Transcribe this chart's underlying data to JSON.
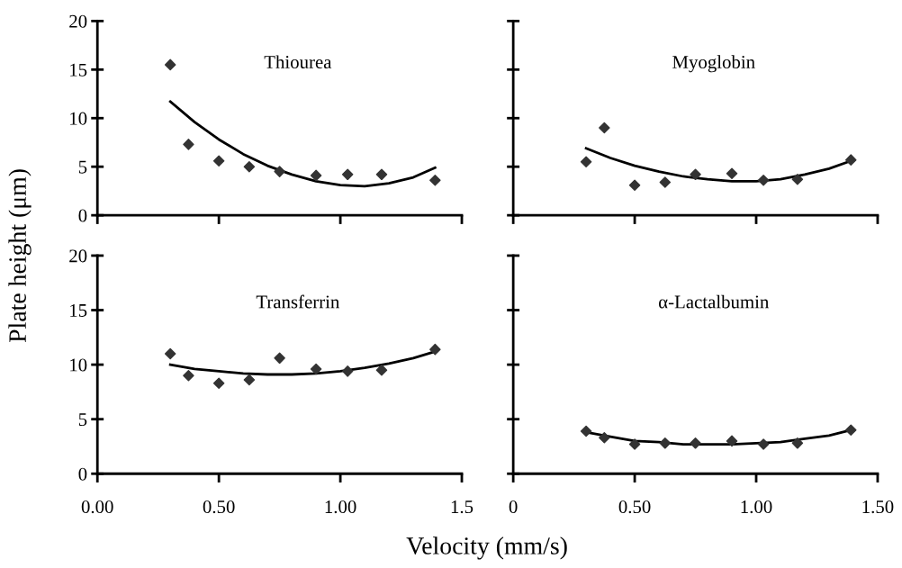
{
  "chart_data": [
    {
      "type": "scatter",
      "title": "Thiourea",
      "ylabel": "Plate height (μm)",
      "xlim": [
        0,
        1.5
      ],
      "xticks": [
        {
          "value": 0,
          "label": null
        },
        {
          "value": 0.5,
          "label": null
        },
        {
          "value": 1.0,
          "label": null
        },
        {
          "value": 1.5,
          "label": null
        }
      ],
      "ylim": [
        0,
        20
      ],
      "yticks": [
        0,
        5,
        10,
        15,
        20
      ],
      "tick_labels": "y",
      "series": [
        {
          "color": "#333333",
          "marker": "diamond",
          "x": [
            0.3,
            0.375,
            0.5,
            0.625,
            0.75,
            0.9,
            1.03,
            1.17,
            1.39
          ],
          "values": [
            15.5,
            7.3,
            5.6,
            5.0,
            4.5,
            4.1,
            4.2,
            4.2,
            3.6
          ]
        },
        {
          "type": "line",
          "color": "#000000",
          "x": [
            0.3,
            0.4,
            0.5,
            0.6,
            0.7,
            0.8,
            0.9,
            1.0,
            1.1,
            1.2,
            1.3,
            1.39
          ],
          "values": [
            11.7,
            9.6,
            7.8,
            6.3,
            5.1,
            4.2,
            3.5,
            3.1,
            3.0,
            3.3,
            3.9,
            4.9
          ]
        }
      ]
    },
    {
      "type": "scatter",
      "title": "Myoglobin",
      "xlim": [
        0,
        1.5
      ],
      "xticks": [
        {
          "value": 0,
          "label": null
        },
        {
          "value": 0.5,
          "label": null
        },
        {
          "value": 1.0,
          "label": null
        },
        {
          "value": 1.5,
          "label": null
        }
      ],
      "ylim": [
        0,
        20
      ],
      "yticks": [
        {
          "value": 0,
          "label": null
        },
        {
          "value": 5,
          "label": null
        },
        {
          "value": 10,
          "label": null
        },
        {
          "value": 15,
          "label": null
        },
        {
          "value": 20,
          "label": null
        }
      ],
      "tick_labels": false,
      "series": [
        {
          "color": "#333333",
          "marker": "diamond",
          "x": [
            0.3,
            0.375,
            0.5,
            0.625,
            0.75,
            0.9,
            1.03,
            1.17,
            1.39
          ],
          "values": [
            5.5,
            9.0,
            3.1,
            3.4,
            4.2,
            4.3,
            3.6,
            3.7,
            5.7
          ]
        },
        {
          "type": "line",
          "color": "#000000",
          "x": [
            0.3,
            0.4,
            0.5,
            0.6,
            0.7,
            0.8,
            0.9,
            1.0,
            1.1,
            1.2,
            1.3,
            1.39
          ],
          "values": [
            6.9,
            5.9,
            5.1,
            4.5,
            4.0,
            3.7,
            3.5,
            3.5,
            3.7,
            4.2,
            4.8,
            5.6
          ]
        }
      ]
    },
    {
      "type": "scatter",
      "title": "Transferrin",
      "xlabel": "Velocity (mm/s)",
      "xlim": [
        0,
        1.5
      ],
      "xticks": [
        {
          "value": 0,
          "label": "0.00"
        },
        {
          "value": 0.5,
          "label": "0.50"
        },
        {
          "value": 1.0,
          "label": "1.00"
        },
        {
          "value": 1.5,
          "label": "1.5"
        }
      ],
      "ylim": [
        0,
        20
      ],
      "yticks": [
        0,
        5,
        10,
        15,
        20
      ],
      "series": [
        {
          "color": "#333333",
          "marker": "diamond",
          "x": [
            0.3,
            0.375,
            0.5,
            0.625,
            0.75,
            0.9,
            1.03,
            1.17,
            1.39
          ],
          "values": [
            11.0,
            9.0,
            8.3,
            8.6,
            10.6,
            9.6,
            9.4,
            9.5,
            11.4
          ]
        },
        {
          "type": "line",
          "color": "#000000",
          "x": [
            0.3,
            0.4,
            0.5,
            0.6,
            0.7,
            0.8,
            0.9,
            1.0,
            1.1,
            1.2,
            1.3,
            1.39
          ],
          "values": [
            10.0,
            9.6,
            9.4,
            9.2,
            9.1,
            9.1,
            9.2,
            9.4,
            9.7,
            10.1,
            10.6,
            11.2
          ]
        }
      ]
    },
    {
      "type": "scatter",
      "title": "α-Lactalbumin",
      "xlim": [
        0,
        1.5
      ],
      "xticks": [
        {
          "value": 0,
          "label": "0"
        },
        {
          "value": 0.5,
          "label": "0.50"
        },
        {
          "value": 1.0,
          "label": "1.00"
        },
        {
          "value": 1.5,
          "label": "1.50"
        }
      ],
      "ylim": [
        0,
        20
      ],
      "yticks": [
        {
          "value": 0,
          "label": null
        },
        {
          "value": 5,
          "label": null
        },
        {
          "value": 10,
          "label": null
        },
        {
          "value": 15,
          "label": null
        },
        {
          "value": 20,
          "label": null
        }
      ],
      "tick_labels": "x",
      "series": [
        {
          "color": "#333333",
          "marker": "diamond",
          "x": [
            0.3,
            0.375,
            0.5,
            0.625,
            0.75,
            0.9,
            1.03,
            1.17,
            1.39
          ],
          "values": [
            3.9,
            3.3,
            2.7,
            2.8,
            2.8,
            3.0,
            2.7,
            2.8,
            4.0
          ]
        },
        {
          "type": "line",
          "color": "#000000",
          "x": [
            0.3,
            0.4,
            0.5,
            0.6,
            0.7,
            0.8,
            0.9,
            1.0,
            1.1,
            1.2,
            1.3,
            1.39
          ],
          "values": [
            3.8,
            3.4,
            3.0,
            2.9,
            2.7,
            2.7,
            2.7,
            2.8,
            2.9,
            3.2,
            3.5,
            4.0
          ]
        }
      ]
    }
  ]
}
